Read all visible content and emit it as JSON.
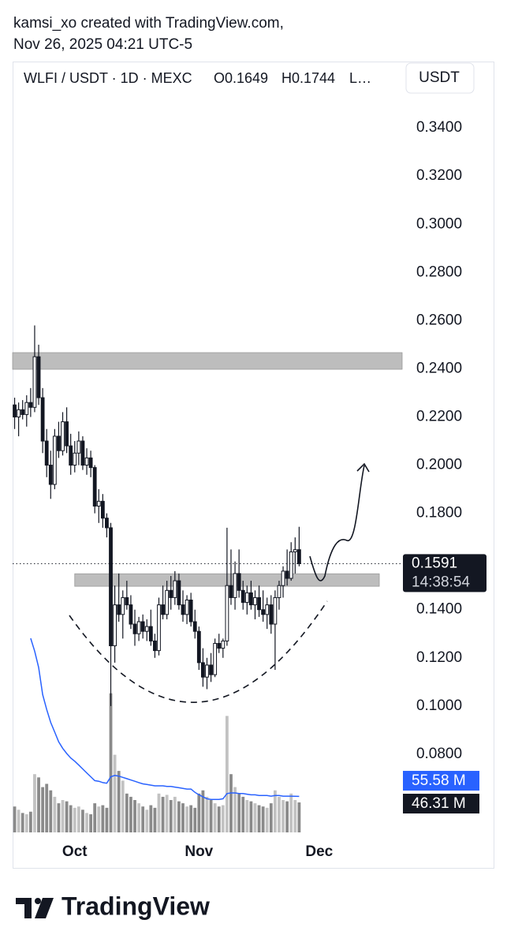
{
  "attribution": [
    "kamsi_xo created with TradingView.com,",
    "Nov 26, 2025 04:21 UTC-5"
  ],
  "logo": "TradingView",
  "chart_data": {
    "type": "candlestick",
    "legend": [
      "WLFI / USDT · 1D · MEXC",
      "O0.1649",
      "H0.1744",
      "L…"
    ],
    "currency": "USDT",
    "x": [
      -15,
      -14,
      -13,
      -12,
      -11,
      -10,
      -9,
      -8,
      -7,
      -6,
      -5,
      -4,
      -3,
      -2,
      -1,
      0,
      1,
      2,
      3,
      4,
      5,
      6,
      7,
      8,
      9,
      10,
      11,
      12,
      13,
      14,
      15,
      16,
      17,
      18,
      19,
      20,
      21,
      22,
      23,
      24,
      25,
      26,
      27,
      28,
      29,
      30,
      31,
      32,
      33,
      34,
      35,
      36,
      37,
      38,
      39,
      40,
      41,
      42,
      43,
      44,
      45,
      46,
      47,
      48,
      49,
      50,
      51,
      52,
      53,
      54,
      55,
      56
    ],
    "xlim": [
      -15.5,
      81.7
    ],
    "xticks": [
      {
        "value": 0,
        "label": "Oct"
      },
      {
        "value": 31,
        "label": "Nov"
      },
      {
        "value": 61,
        "label": "Dec"
      }
    ],
    "ylim": [
      0.0459,
      0.3669
    ],
    "yticks": [
      {
        "value": 0.34,
        "label": "0.3400"
      },
      {
        "value": 0.32,
        "label": "0.3200"
      },
      {
        "value": 0.3,
        "label": "0.3000"
      },
      {
        "value": 0.28,
        "label": "0.2800"
      },
      {
        "value": 0.26,
        "label": "0.2600"
      },
      {
        "value": 0.24,
        "label": "0.2400"
      },
      {
        "value": 0.22,
        "label": "0.2200"
      },
      {
        "value": 0.2,
        "label": "0.2000"
      },
      {
        "value": 0.18,
        "label": "0.1800"
      },
      {
        "value": 0.14,
        "label": "0.1400"
      },
      {
        "value": 0.12,
        "label": "0.1200"
      },
      {
        "value": 0.1,
        "label": "0.1000"
      },
      {
        "value": 0.08,
        "label": "0.0800"
      }
    ],
    "grid": false,
    "up_color": "#ffffff",
    "down_color": "#131722",
    "open": [
      0.225,
      0.22,
      0.223,
      0.221,
      0.226,
      0.224,
      0.245,
      0.228,
      0.21,
      0.2,
      0.192,
      0.212,
      0.206,
      0.218,
      0.208,
      0.2,
      0.205,
      0.21,
      0.2,
      0.203,
      0.199,
      0.183,
      0.185,
      0.178,
      0.174,
      0.125,
      0.142,
      0.138,
      0.145,
      0.142,
      0.134,
      0.13,
      0.135,
      0.131,
      0.133,
      0.127,
      0.123,
      0.142,
      0.138,
      0.148,
      0.145,
      0.152,
      0.142,
      0.138,
      0.144,
      0.135,
      0.131,
      0.118,
      0.112,
      0.117,
      0.113,
      0.126,
      0.124,
      0.127,
      0.15,
      0.145,
      0.155,
      0.148,
      0.143,
      0.147,
      0.142,
      0.145,
      0.14,
      0.138,
      0.142,
      0.134,
      0.145,
      0.15,
      0.156,
      0.153,
      0.164,
      0.1649
    ],
    "high": [
      0.228,
      0.226,
      0.227,
      0.229,
      0.232,
      0.258,
      0.25,
      0.232,
      0.215,
      0.206,
      0.215,
      0.218,
      0.222,
      0.224,
      0.213,
      0.21,
      0.214,
      0.212,
      0.207,
      0.206,
      0.2,
      0.19,
      0.188,
      0.18,
      0.176,
      0.15,
      0.155,
      0.148,
      0.152,
      0.146,
      0.14,
      0.137,
      0.138,
      0.136,
      0.14,
      0.13,
      0.145,
      0.15,
      0.152,
      0.154,
      0.156,
      0.155,
      0.148,
      0.146,
      0.147,
      0.14,
      0.133,
      0.124,
      0.12,
      0.122,
      0.128,
      0.13,
      0.128,
      0.174,
      0.165,
      0.16,
      0.165,
      0.152,
      0.15,
      0.152,
      0.148,
      0.15,
      0.148,
      0.145,
      0.146,
      0.148,
      0.152,
      0.158,
      0.165,
      0.168,
      0.17,
      0.1744
    ],
    "low": [
      0.215,
      0.212,
      0.219,
      0.216,
      0.22,
      0.222,
      0.225,
      0.205,
      0.195,
      0.186,
      0.19,
      0.203,
      0.204,
      0.205,
      0.196,
      0.197,
      0.2,
      0.198,
      0.196,
      0.195,
      0.18,
      0.176,
      0.174,
      0.17,
      0.1,
      0.118,
      0.135,
      0.128,
      0.14,
      0.132,
      0.125,
      0.127,
      0.128,
      0.127,
      0.125,
      0.12,
      0.121,
      0.136,
      0.136,
      0.14,
      0.142,
      0.14,
      0.135,
      0.134,
      0.133,
      0.128,
      0.115,
      0.108,
      0.107,
      0.11,
      0.112,
      0.122,
      0.12,
      0.125,
      0.142,
      0.14,
      0.145,
      0.14,
      0.138,
      0.14,
      0.136,
      0.137,
      0.135,
      0.132,
      0.13,
      0.115,
      0.14,
      0.145,
      0.15,
      0.152,
      0.155,
      0.158
    ],
    "close": [
      0.22,
      0.223,
      0.221,
      0.226,
      0.224,
      0.245,
      0.228,
      0.21,
      0.2,
      0.192,
      0.212,
      0.206,
      0.218,
      0.208,
      0.2,
      0.205,
      0.21,
      0.2,
      0.203,
      0.199,
      0.183,
      0.185,
      0.178,
      0.174,
      0.125,
      0.142,
      0.138,
      0.145,
      0.142,
      0.134,
      0.13,
      0.135,
      0.131,
      0.133,
      0.127,
      0.123,
      0.142,
      0.138,
      0.148,
      0.145,
      0.152,
      0.142,
      0.138,
      0.144,
      0.135,
      0.131,
      0.118,
      0.112,
      0.117,
      0.113,
      0.126,
      0.124,
      0.127,
      0.15,
      0.145,
      0.155,
      0.148,
      0.143,
      0.147,
      0.142,
      0.145,
      0.14,
      0.138,
      0.142,
      0.134,
      0.145,
      0.15,
      0.156,
      0.153,
      0.164,
      0.1649,
      0.1591
    ],
    "volume": [
      40,
      35,
      30,
      28,
      32,
      90,
      85,
      70,
      75,
      65,
      55,
      45,
      50,
      48,
      42,
      38,
      40,
      35,
      30,
      28,
      45,
      40,
      42,
      38,
      215,
      120,
      95,
      80,
      60,
      55,
      50,
      45,
      40,
      35,
      42,
      38,
      60,
      55,
      58,
      50,
      55,
      48,
      45,
      40,
      42,
      38,
      60,
      65,
      55,
      50,
      45,
      40,
      42,
      180,
      90,
      70,
      60,
      55,
      50,
      48,
      45,
      42,
      40,
      38,
      45,
      65,
      55,
      50,
      48,
      60,
      50,
      46.31
    ],
    "volume_ma": [
      null,
      null,
      null,
      null,
      300,
      280,
      255,
      213,
      190,
      170,
      155,
      140,
      130,
      122,
      115,
      110,
      104,
      98,
      92,
      86,
      80,
      79,
      77,
      76,
      86,
      88,
      87,
      85,
      83,
      81,
      79,
      77,
      75,
      74,
      73,
      72,
      72,
      72,
      71,
      71,
      70,
      69,
      68,
      67,
      67,
      62,
      58,
      55,
      52,
      51,
      51,
      51,
      52,
      60,
      61,
      61,
      60,
      60,
      59,
      58,
      58,
      57,
      57,
      57,
      56,
      57,
      57,
      56,
      56,
      56,
      55.8,
      55.58
    ],
    "vlim": [
      0,
      300
    ],
    "volume_up_color": "#c2c2c2",
    "volume_down_color": "#8a8a8a",
    "volume_ma_color": "#2962ff",
    "zones": [
      {
        "from": 0.2398,
        "to": 0.2467,
        "x": [
          -15.5,
          81.7
        ]
      },
      {
        "from": 0.1497,
        "to": 0.1549,
        "x": [
          0,
          76
        ]
      }
    ],
    "zone_color": "#bdbdbd",
    "last_price": {
      "value": 0.1591,
      "label": "0.1591",
      "countdown": "14:38:54"
    },
    "volume_ma_label": {
      "value": 55.58,
      "label": "55.58 M"
    },
    "volume_label": {
      "value": 46.31,
      "label": "46.31 M"
    }
  }
}
